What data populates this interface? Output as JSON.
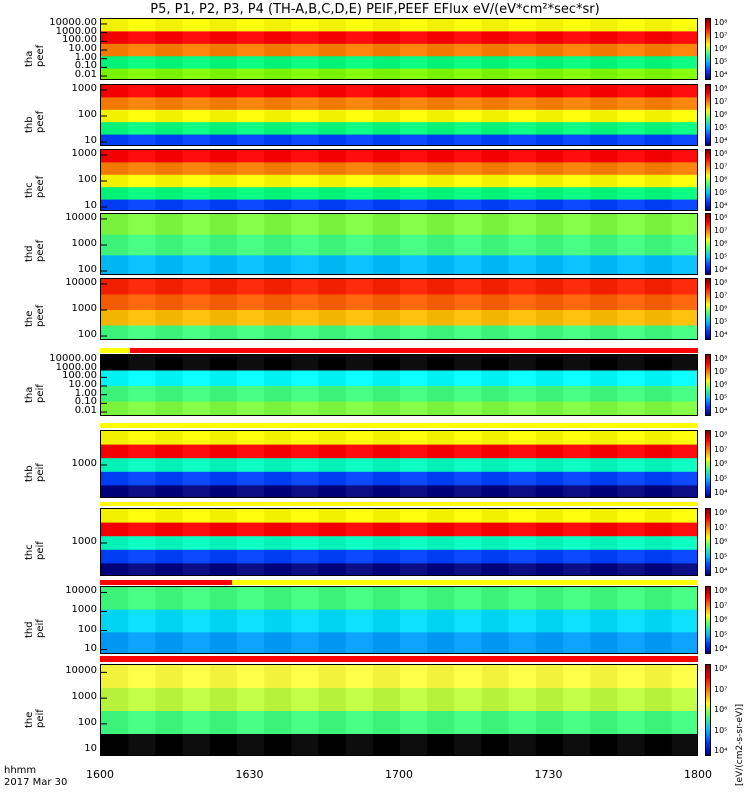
{
  "figure": {
    "title": "P5, P1, P2, P3, P4 (TH-A,B,C,D,E) PEIF,PEEF EFlux eV/(eV*cm²*sec*sr)",
    "xaxis": {
      "label_line1": "hhmm",
      "label_line2": "2017 Mar 30",
      "ticks": [
        "1600",
        "1630",
        "1700",
        "1730",
        "1800"
      ]
    },
    "colorbar_label": "[eV/(cm2-s-sr-eV)]",
    "colorbar_ticks": [
      "10⁴",
      "10⁵",
      "10⁶",
      "10⁷",
      "10⁸"
    ]
  },
  "chart_data": [
    {
      "type": "heatmap",
      "title": "",
      "ylabel": "tha peef",
      "x_range": [
        "1600",
        "1800"
      ],
      "ylim": [
        0.01,
        30000
      ],
      "yscale": "log",
      "yticks": [
        "0.01",
        "0.10",
        "1.00",
        "10.00",
        "100.00",
        "1000.00",
        "10000.00"
      ],
      "colors": [
        "#ffff00",
        "#ff0000",
        "#ff8000",
        "#00ff80",
        "#80ff00"
      ]
    },
    {
      "type": "heatmap",
      "title": "",
      "ylabel": "thb peef",
      "x_range": [
        "1600",
        "1800"
      ],
      "ylim": [
        8,
        3000
      ],
      "yscale": "log",
      "yticks": [
        "10",
        "100",
        "1000"
      ],
      "colors": [
        "#ff0000",
        "#ff8000",
        "#ffff00",
        "#00ff80",
        "#0040ff"
      ]
    },
    {
      "type": "heatmap",
      "title": "",
      "ylabel": "thc peef",
      "x_range": [
        "1600",
        "1800"
      ],
      "ylim": [
        8,
        3000
      ],
      "yscale": "log",
      "yticks": [
        "10",
        "100",
        "1000"
      ],
      "colors": [
        "#ff0000",
        "#ff8000",
        "#ffff00",
        "#00ff80",
        "#0040ff"
      ]
    },
    {
      "type": "heatmap",
      "title": "",
      "ylabel": "thd peef",
      "x_range": [
        "1600",
        "1800"
      ],
      "ylim": [
        20,
        30000
      ],
      "yscale": "log",
      "yticks": [
        "100",
        "1000",
        "10000"
      ],
      "colors": [
        "#80ff40",
        "#40ff80",
        "#00c0ff"
      ]
    },
    {
      "type": "heatmap",
      "title": "",
      "ylabel": "the peef",
      "x_range": [
        "1600",
        "1800"
      ],
      "ylim": [
        20,
        30000
      ],
      "yscale": "log",
      "yticks": [
        "100",
        "1000",
        "10000"
      ],
      "colors": [
        "#ff2000",
        "#ff6000",
        "#ffc000",
        "#40ff80"
      ]
    },
    {
      "type": "heatmap",
      "title": "",
      "ylabel": "tha peif",
      "x_range": [
        "1600",
        "1800"
      ],
      "ylim": [
        0.01,
        30000
      ],
      "yscale": "log",
      "yticks": [
        "0.01",
        "0.10",
        "1.00",
        "10.00",
        "100.00",
        "1000.00",
        "10000.00"
      ],
      "colors": [
        "#000000",
        "#00ffff",
        "#40ff80",
        "#80ff40"
      ]
    },
    {
      "type": "heatmap",
      "title": "",
      "ylabel": "thb peif",
      "x_range": [
        "1600",
        "1800"
      ],
      "ylim": [
        200,
        6000
      ],
      "yscale": "log",
      "yticks": [
        "1000"
      ],
      "colors": [
        "#ffff00",
        "#ff0000",
        "#00ffc0",
        "#0040ff",
        "#000080"
      ]
    },
    {
      "type": "heatmap",
      "title": "",
      "ylabel": "thc peif",
      "x_range": [
        "1600",
        "1800"
      ],
      "ylim": [
        200,
        6000
      ],
      "yscale": "log",
      "yticks": [
        "1000"
      ],
      "colors": [
        "#ffff00",
        "#ff0000",
        "#00ffc0",
        "#0040ff",
        "#000080"
      ]
    },
    {
      "type": "heatmap",
      "title": "",
      "ylabel": "thd peif",
      "x_range": [
        "1600",
        "1800"
      ],
      "ylim": [
        6,
        30000
      ],
      "yscale": "log",
      "yticks": [
        "10",
        "100",
        "1000",
        "10000"
      ],
      "colors": [
        "#40ff80",
        "#00e0ff",
        "#00a0ff"
      ]
    },
    {
      "type": "heatmap",
      "title": "",
      "ylabel": "the peif",
      "x_range": [
        "1600",
        "1800"
      ],
      "ylim": [
        6,
        30000
      ],
      "yscale": "log",
      "yticks": [
        "10",
        "100",
        "1000",
        "10000"
      ],
      "colors": [
        "#ffff40",
        "#c0ff40",
        "#40ff80",
        "#000000"
      ]
    }
  ]
}
